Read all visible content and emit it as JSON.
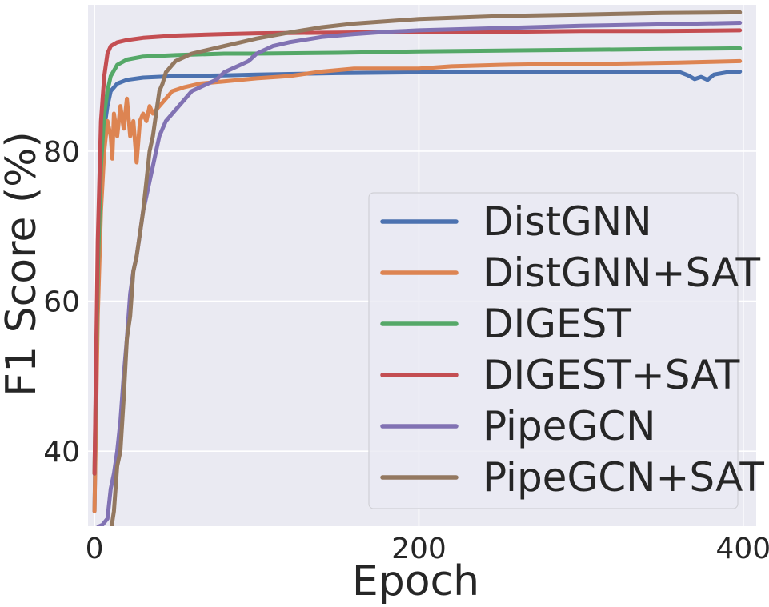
{
  "chart_data": {
    "type": "line",
    "title": "",
    "xlabel": "Epoch",
    "ylabel": "F1 Score (%)",
    "xlim": [
      -4,
      408
    ],
    "ylim": [
      30,
      99.5
    ],
    "xticks": [
      0,
      200,
      400
    ],
    "yticks": [
      40,
      60,
      80
    ],
    "grid": true,
    "legend_position": "lower-right",
    "series": [
      {
        "name": "DistGNN",
        "color": "#4c72b0",
        "points": [
          [
            0,
            32
          ],
          [
            2,
            62
          ],
          [
            4,
            76
          ],
          [
            6,
            83
          ],
          [
            8,
            86
          ],
          [
            10,
            88
          ],
          [
            14,
            89
          ],
          [
            20,
            89.5
          ],
          [
            30,
            89.8
          ],
          [
            50,
            90
          ],
          [
            80,
            90.1
          ],
          [
            100,
            90.2
          ],
          [
            150,
            90.4
          ],
          [
            200,
            90.5
          ],
          [
            250,
            90.5
          ],
          [
            300,
            90.5
          ],
          [
            350,
            90.6
          ],
          [
            360,
            90.6
          ],
          [
            366,
            90.1
          ],
          [
            370,
            89.6
          ],
          [
            374,
            89.9
          ],
          [
            378,
            89.5
          ],
          [
            382,
            90.2
          ],
          [
            390,
            90.5
          ],
          [
            398,
            90.6
          ]
        ]
      },
      {
        "name": "DistGNN+SAT",
        "color": "#dd8452",
        "points": [
          [
            0,
            32
          ],
          [
            2,
            58
          ],
          [
            4,
            72
          ],
          [
            6,
            80
          ],
          [
            8,
            84
          ],
          [
            10,
            82
          ],
          [
            11,
            79
          ],
          [
            12,
            85
          ],
          [
            14,
            82
          ],
          [
            16,
            86
          ],
          [
            18,
            83
          ],
          [
            20,
            87
          ],
          [
            22,
            82
          ],
          [
            24,
            84
          ],
          [
            26,
            78.5
          ],
          [
            28,
            84
          ],
          [
            30,
            85
          ],
          [
            32,
            84
          ],
          [
            34,
            86
          ],
          [
            36,
            85
          ],
          [
            40,
            86
          ],
          [
            44,
            87
          ],
          [
            48,
            88
          ],
          [
            55,
            88.5
          ],
          [
            65,
            89
          ],
          [
            80,
            89.3
          ],
          [
            100,
            89.7
          ],
          [
            120,
            90
          ],
          [
            140,
            90.6
          ],
          [
            160,
            91
          ],
          [
            180,
            91
          ],
          [
            200,
            91
          ],
          [
            220,
            91.3
          ],
          [
            250,
            91.5
          ],
          [
            280,
            91.6
          ],
          [
            300,
            91.6
          ],
          [
            330,
            91.7
          ],
          [
            360,
            91.8
          ],
          [
            380,
            91.9
          ],
          [
            398,
            92
          ]
        ]
      },
      {
        "name": "DIGEST",
        "color": "#55a868",
        "points": [
          [
            0,
            37
          ],
          [
            2,
            64
          ],
          [
            4,
            78
          ],
          [
            6,
            85
          ],
          [
            8,
            88
          ],
          [
            10,
            90
          ],
          [
            14,
            91.5
          ],
          [
            20,
            92.2
          ],
          [
            30,
            92.6
          ],
          [
            50,
            92.8
          ],
          [
            80,
            93
          ],
          [
            100,
            93
          ],
          [
            150,
            93.1
          ],
          [
            200,
            93.3
          ],
          [
            250,
            93.4
          ],
          [
            300,
            93.5
          ],
          [
            350,
            93.6
          ],
          [
            398,
            93.7
          ]
        ]
      },
      {
        "name": "DIGEST+SAT",
        "color": "#c44e52",
        "points": [
          [
            0,
            37
          ],
          [
            2,
            68
          ],
          [
            4,
            84
          ],
          [
            6,
            90
          ],
          [
            8,
            93
          ],
          [
            10,
            94
          ],
          [
            14,
            94.5
          ],
          [
            20,
            94.8
          ],
          [
            30,
            95.1
          ],
          [
            50,
            95.4
          ],
          [
            80,
            95.6
          ],
          [
            100,
            95.7
          ],
          [
            150,
            95.8
          ],
          [
            200,
            95.9
          ],
          [
            250,
            95.9
          ],
          [
            300,
            96
          ],
          [
            350,
            96
          ],
          [
            398,
            96.1
          ]
        ]
      },
      {
        "name": "PipeGCN",
        "color": "#8172b3",
        "points": [
          [
            0,
            29.5
          ],
          [
            3,
            30
          ],
          [
            5,
            30.2
          ],
          [
            8,
            31
          ],
          [
            10,
            35
          ],
          [
            12,
            37
          ],
          [
            14,
            40
          ],
          [
            16,
            44
          ],
          [
            18,
            50
          ],
          [
            20,
            55
          ],
          [
            22,
            61
          ],
          [
            24,
            64
          ],
          [
            26,
            66
          ],
          [
            28,
            69
          ],
          [
            30,
            72
          ],
          [
            32,
            74
          ],
          [
            34,
            76
          ],
          [
            36,
            78
          ],
          [
            38,
            80
          ],
          [
            40,
            82
          ],
          [
            42,
            83
          ],
          [
            44,
            84
          ],
          [
            48,
            85
          ],
          [
            52,
            86
          ],
          [
            56,
            87
          ],
          [
            60,
            88
          ],
          [
            65,
            88.5
          ],
          [
            70,
            89
          ],
          [
            75,
            89.5
          ],
          [
            80,
            90.5
          ],
          [
            85,
            91
          ],
          [
            90,
            91.5
          ],
          [
            95,
            92
          ],
          [
            100,
            93
          ],
          [
            110,
            94
          ],
          [
            120,
            94.5
          ],
          [
            140,
            95.2
          ],
          [
            160,
            95.6
          ],
          [
            180,
            95.9
          ],
          [
            200,
            96.1
          ],
          [
            250,
            96.4
          ],
          [
            300,
            96.7
          ],
          [
            350,
            96.9
          ],
          [
            398,
            97.1
          ]
        ]
      },
      {
        "name": "PipeGCN+SAT",
        "color": "#937860",
        "points": [
          [
            0,
            29
          ],
          [
            8,
            29
          ],
          [
            10,
            29.2
          ],
          [
            12,
            32
          ],
          [
            14,
            38
          ],
          [
            16,
            40
          ],
          [
            18,
            47
          ],
          [
            20,
            55
          ],
          [
            22,
            58
          ],
          [
            24,
            64
          ],
          [
            26,
            66
          ],
          [
            28,
            69
          ],
          [
            30,
            72
          ],
          [
            32,
            76
          ],
          [
            34,
            80
          ],
          [
            36,
            82
          ],
          [
            38,
            85
          ],
          [
            40,
            88
          ],
          [
            42,
            89
          ],
          [
            44,
            90.5
          ],
          [
            46,
            91
          ],
          [
            50,
            92
          ],
          [
            55,
            92.5
          ],
          [
            60,
            93
          ],
          [
            70,
            93.5
          ],
          [
            80,
            94
          ],
          [
            90,
            94.5
          ],
          [
            100,
            95
          ],
          [
            120,
            95.8
          ],
          [
            140,
            96.5
          ],
          [
            160,
            97
          ],
          [
            180,
            97.3
          ],
          [
            200,
            97.6
          ],
          [
            250,
            98
          ],
          [
            300,
            98.2
          ],
          [
            350,
            98.4
          ],
          [
            398,
            98.5
          ]
        ]
      }
    ]
  }
}
